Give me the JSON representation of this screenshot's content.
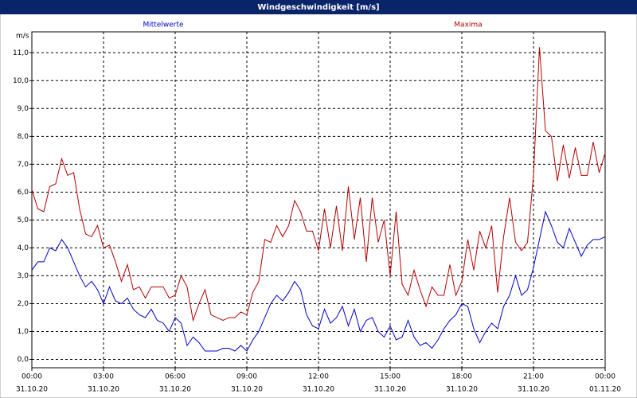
{
  "chart_data": {
    "type": "line",
    "title": "Windgeschwindigkeit [m/s]",
    "y_unit": "m/s",
    "x": [
      0,
      0.25,
      0.5,
      0.75,
      1,
      1.25,
      1.5,
      1.75,
      2,
      2.25,
      2.5,
      2.75,
      3,
      3.25,
      3.5,
      3.75,
      4,
      4.25,
      4.5,
      4.75,
      5,
      5.25,
      5.5,
      5.75,
      6,
      6.25,
      6.5,
      6.75,
      7,
      7.25,
      7.5,
      7.75,
      8,
      8.25,
      8.5,
      8.75,
      9,
      9.25,
      9.5,
      9.75,
      10,
      10.25,
      10.5,
      10.75,
      11,
      11.25,
      11.5,
      11.75,
      12,
      12.25,
      12.5,
      12.75,
      13,
      13.25,
      13.5,
      13.75,
      14,
      14.25,
      14.5,
      14.75,
      15,
      15.25,
      15.5,
      15.75,
      16,
      16.25,
      16.5,
      16.75,
      17,
      17.25,
      17.5,
      17.75,
      18,
      18.25,
      18.5,
      18.75,
      19,
      19.25,
      19.5,
      19.75,
      20,
      20.25,
      20.5,
      20.75,
      21,
      21.25,
      21.5,
      21.75,
      22,
      22.25,
      22.5,
      22.75,
      23,
      23.25,
      23.5,
      23.75,
      24
    ],
    "series": [
      {
        "name": "Mittelwerte",
        "color": "#0000c8",
        "values": [
          3.2,
          3.5,
          3.5,
          4.0,
          3.9,
          4.3,
          4.0,
          3.5,
          3.0,
          2.6,
          2.8,
          2.5,
          2.0,
          2.6,
          2.1,
          2.0,
          2.2,
          1.8,
          1.6,
          1.5,
          1.8,
          1.4,
          1.3,
          1.0,
          1.5,
          1.3,
          0.5,
          0.8,
          0.6,
          0.3,
          0.3,
          0.3,
          0.4,
          0.4,
          0.3,
          0.5,
          0.3,
          0.7,
          1.0,
          1.5,
          2.0,
          2.3,
          2.1,
          2.4,
          2.8,
          2.5,
          1.6,
          1.2,
          1.1,
          1.8,
          1.3,
          1.5,
          1.9,
          1.2,
          1.8,
          1.0,
          1.4,
          1.5,
          1.0,
          0.8,
          1.2,
          0.7,
          0.8,
          1.4,
          0.8,
          0.5,
          0.6,
          0.4,
          0.7,
          1.1,
          1.4,
          1.6,
          2.0,
          1.9,
          1.1,
          0.6,
          1.0,
          1.3,
          1.1,
          1.9,
          2.3,
          3.0,
          2.3,
          2.5,
          3.3,
          4.3,
          5.3,
          4.8,
          4.2,
          4.0,
          4.7,
          4.2,
          3.7,
          4.1,
          4.3,
          4.3,
          4.4
        ]
      },
      {
        "name": "Maxima",
        "color": "#b40000",
        "values": [
          6.1,
          5.4,
          5.3,
          6.2,
          6.3,
          7.2,
          6.6,
          6.7,
          5.4,
          4.5,
          4.4,
          4.8,
          4.0,
          4.1,
          3.5,
          2.8,
          3.4,
          2.5,
          2.6,
          2.2,
          2.6,
          2.6,
          2.6,
          2.2,
          2.3,
          3.0,
          2.6,
          1.4,
          2.0,
          2.5,
          1.6,
          1.5,
          1.4,
          1.5,
          1.5,
          1.7,
          1.6,
          2.4,
          2.8,
          4.3,
          4.2,
          4.8,
          4.4,
          4.8,
          5.7,
          5.3,
          4.6,
          4.6,
          3.9,
          5.4,
          4.0,
          5.5,
          3.9,
          6.2,
          4.3,
          5.8,
          3.5,
          5.8,
          4.2,
          5.0,
          3.0,
          5.3,
          2.7,
          2.3,
          3.2,
          2.5,
          1.9,
          2.6,
          2.3,
          2.3,
          3.4,
          2.3,
          2.8,
          4.3,
          3.2,
          4.6,
          4.0,
          4.8,
          2.4,
          4.4,
          5.8,
          4.2,
          3.9,
          4.2,
          6.6,
          11.2,
          8.2,
          8.0,
          6.4,
          7.7,
          6.5,
          7.6,
          6.6,
          6.6,
          7.8,
          6.7,
          7.4
        ]
      }
    ],
    "xlim": [
      0,
      24
    ],
    "xticks": [
      {
        "value": 0,
        "label": "00:00",
        "date": "31.10.20"
      },
      {
        "value": 3,
        "label": "03:00",
        "date": "31.10.20"
      },
      {
        "value": 6,
        "label": "06:00",
        "date": "31.10.20"
      },
      {
        "value": 9,
        "label": "09:00",
        "date": "31.10.20"
      },
      {
        "value": 12,
        "label": "12:00",
        "date": "31.10.20"
      },
      {
        "value": 15,
        "label": "15:00",
        "date": "31.10.20"
      },
      {
        "value": 18,
        "label": "18:00",
        "date": "31.10.20"
      },
      {
        "value": 21,
        "label": "21:00",
        "date": "31.10.20"
      },
      {
        "value": 24,
        "label": "00:00",
        "date": "01.11.20"
      }
    ],
    "ylim": [
      -0.3,
      11.75
    ],
    "yticks": [
      {
        "value": 0,
        "label": "0,0"
      },
      {
        "value": 1,
        "label": "1,0"
      },
      {
        "value": 2,
        "label": "2,0"
      },
      {
        "value": 3,
        "label": "3,0"
      },
      {
        "value": 4,
        "label": "4,0"
      },
      {
        "value": 5,
        "label": "5,0"
      },
      {
        "value": 6,
        "label": "6,0"
      },
      {
        "value": 7,
        "label": "7,0"
      },
      {
        "value": 8,
        "label": "8,0"
      },
      {
        "value": 9,
        "label": "9,0"
      },
      {
        "value": 10,
        "label": "10,0"
      },
      {
        "value": 11,
        "label": "11,0"
      }
    ],
    "grid": true
  }
}
